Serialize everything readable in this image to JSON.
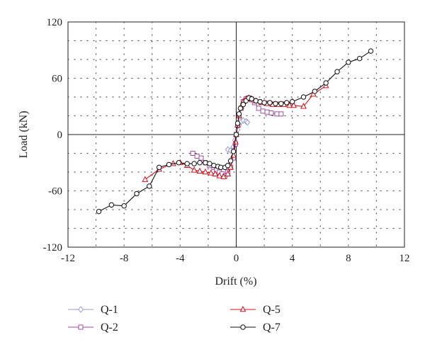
{
  "chart_data": {
    "type": "line",
    "xlabel": "Drift (%)",
    "ylabel": "Load (kN)",
    "xlim": [
      -12,
      12
    ],
    "ylim": [
      -120,
      120
    ],
    "xticks": [
      "-12",
      "-8",
      "-4",
      "0",
      "4",
      "8",
      "12"
    ],
    "yticks": [
      "-120",
      "-60",
      "0",
      "60",
      "120"
    ],
    "grid": true,
    "legend_position": "bottom",
    "series": [
      {
        "name": "Q-1",
        "color": "#9a9ad6",
        "marker": "diamond",
        "points": [
          [
            -0.6,
            -16
          ],
          [
            -0.4,
            -17
          ],
          [
            -0.2,
            -13
          ],
          [
            -0.1,
            -6
          ],
          [
            0,
            0
          ],
          [
            0.1,
            5
          ],
          [
            0.2,
            10
          ],
          [
            0.35,
            14
          ],
          [
            0.5,
            15
          ],
          [
            0.7,
            14
          ],
          [
            0.8,
            13
          ]
        ]
      },
      {
        "name": "Q-2",
        "color": "#a04ea0",
        "marker": "square",
        "points": [
          [
            -3.1,
            -20
          ],
          [
            -2.8,
            -23
          ],
          [
            -2.5,
            -25
          ],
          [
            -2.2,
            -30
          ],
          [
            -1.9,
            -33
          ],
          [
            -1.6,
            -35
          ],
          [
            -1.4,
            -38
          ],
          [
            -1.2,
            -40
          ],
          [
            -1.0,
            -42
          ],
          [
            -0.8,
            -44
          ],
          [
            -0.6,
            -40
          ],
          [
            -0.4,
            -35
          ],
          [
            -0.2,
            -25
          ],
          [
            -0.05,
            -10
          ],
          [
            0,
            0
          ],
          [
            0.1,
            10
          ],
          [
            0.2,
            20
          ],
          [
            0.35,
            28
          ],
          [
            0.5,
            35
          ],
          [
            0.7,
            38
          ],
          [
            0.9,
            39
          ],
          [
            1.1,
            37
          ],
          [
            1.3,
            34
          ],
          [
            1.6,
            28
          ],
          [
            1.9,
            25
          ],
          [
            2.2,
            24
          ],
          [
            2.5,
            23
          ],
          [
            2.9,
            22
          ],
          [
            3.2,
            22
          ]
        ]
      },
      {
        "name": "Q-5",
        "color": "#d4101a",
        "marker": "triangle",
        "points": [
          [
            -6.5,
            -48
          ],
          [
            -5.5,
            -37
          ],
          [
            -4.5,
            -31
          ],
          [
            -4.0,
            -30
          ],
          [
            -3.5,
            -33
          ],
          [
            -3.0,
            -38
          ],
          [
            -2.6,
            -39
          ],
          [
            -2.2,
            -40
          ],
          [
            -1.8,
            -41
          ],
          [
            -1.5,
            -42
          ],
          [
            -1.2,
            -44
          ],
          [
            -0.9,
            -45
          ],
          [
            -0.6,
            -42
          ],
          [
            -0.4,
            -35
          ],
          [
            -0.2,
            -22
          ],
          [
            -0.05,
            -8
          ],
          [
            0,
            0
          ],
          [
            0.1,
            10
          ],
          [
            0.2,
            20
          ],
          [
            0.35,
            30
          ],
          [
            0.5,
            35
          ],
          [
            0.7,
            38
          ],
          [
            0.9,
            39
          ],
          [
            1.1,
            38
          ],
          [
            1.4,
            36
          ],
          [
            1.8,
            34
          ],
          [
            2.2,
            33
          ],
          [
            2.6,
            32
          ],
          [
            3.0,
            32
          ],
          [
            3.4,
            32
          ],
          [
            3.8,
            31
          ],
          [
            4.1,
            31
          ],
          [
            4.8,
            30
          ],
          [
            5.5,
            43
          ],
          [
            6.4,
            52
          ]
        ]
      },
      {
        "name": "Q-7",
        "color": "#111111",
        "marker": "circle",
        "points": [
          [
            -9.8,
            -82
          ],
          [
            -8.9,
            -75
          ],
          [
            -8.0,
            -76
          ],
          [
            -7.1,
            -63
          ],
          [
            -6.2,
            -55
          ],
          [
            -5.5,
            -35
          ],
          [
            -4.8,
            -32
          ],
          [
            -4.1,
            -30
          ],
          [
            -3.5,
            -31
          ],
          [
            -3.0,
            -31
          ],
          [
            -2.6,
            -30
          ],
          [
            -2.2,
            -30
          ],
          [
            -1.9,
            -31
          ],
          [
            -1.6,
            -33
          ],
          [
            -1.3,
            -34
          ],
          [
            -1.1,
            -35
          ],
          [
            -0.8,
            -35
          ],
          [
            -0.6,
            -33
          ],
          [
            -0.4,
            -28
          ],
          [
            -0.2,
            -18
          ],
          [
            0,
            0
          ],
          [
            0.1,
            12
          ],
          [
            0.2,
            22
          ],
          [
            0.3,
            28
          ],
          [
            0.5,
            32
          ],
          [
            0.7,
            36
          ],
          [
            0.9,
            39
          ],
          [
            1.1,
            38
          ],
          [
            1.4,
            36
          ],
          [
            1.7,
            35
          ],
          [
            2.0,
            34
          ],
          [
            2.4,
            34
          ],
          [
            2.8,
            33
          ],
          [
            3.2,
            33
          ],
          [
            3.6,
            34
          ],
          [
            4.0,
            35
          ],
          [
            4.8,
            40
          ],
          [
            5.6,
            46
          ],
          [
            6.4,
            55
          ],
          [
            7.2,
            67
          ],
          [
            8.0,
            77
          ],
          [
            8.8,
            81
          ],
          [
            9.6,
            89
          ]
        ]
      }
    ]
  }
}
